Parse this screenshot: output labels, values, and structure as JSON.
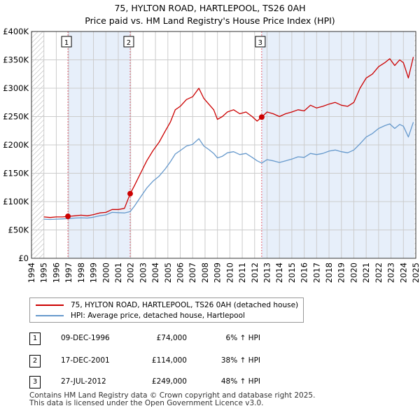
{
  "header": {
    "title_line1": "75, HYLTON ROAD, HARTLEPOOL, TS26 0AH",
    "title_line2": "Price paid vs. HM Land Registry's House Price Index (HPI)"
  },
  "chart_data": {
    "type": "line",
    "y_ticks": [
      {
        "value": 0,
        "label": "£0"
      },
      {
        "value": 50000,
        "label": "£50K"
      },
      {
        "value": 100000,
        "label": "£100K"
      },
      {
        "value": 150000,
        "label": "£150K"
      },
      {
        "value": 200000,
        "label": "£200K"
      },
      {
        "value": 250000,
        "label": "£250K"
      },
      {
        "value": 300000,
        "label": "£300K"
      },
      {
        "value": 350000,
        "label": "£350K"
      },
      {
        "value": 400000,
        "label": "£400K"
      }
    ],
    "ylim": [
      0,
      400000
    ],
    "xlim": [
      1995,
      2025
    ],
    "x_ticks": [
      "1994",
      "1995",
      "1996",
      "1997",
      "1998",
      "1999",
      "2000",
      "2001",
      "2002",
      "2003",
      "2004",
      "2005",
      "2006",
      "2007",
      "2008",
      "2009",
      "2010",
      "2011",
      "2012",
      "2013",
      "2014",
      "2015",
      "2016",
      "2017",
      "2018",
      "2019",
      "2020",
      "2021",
      "2022",
      "2023",
      "2024",
      "2025"
    ],
    "grid": true,
    "colors": {
      "property": "#cc0000",
      "hpi": "#6699cc",
      "shade": "#dde8f8",
      "hatch": "#b0b0b0",
      "grid": "#cccccc",
      "vline": "#e06070"
    },
    "series": [
      {
        "name": "75, HYLTON ROAD, HARTLEPOOL, TS26 0AH (detached house)",
        "x": [
          1995.0,
          1995.5,
          1996.0,
          1996.5,
          1996.94,
          1997.5,
          1998.0,
          1998.5,
          1999.0,
          1999.5,
          2000.0,
          2000.5,
          2001.0,
          2001.5,
          2001.96,
          2002.3,
          2002.8,
          2003.3,
          2003.8,
          2004.3,
          2004.8,
          2005.2,
          2005.6,
          2006.0,
          2006.5,
          2007.0,
          2007.5,
          2007.9,
          2008.3,
          2008.7,
          2009.0,
          2009.4,
          2009.8,
          2010.3,
          2010.8,
          2011.3,
          2011.8,
          2012.2,
          2012.57,
          2013.0,
          2013.5,
          2014.0,
          2014.5,
          2015.0,
          2015.5,
          2016.0,
          2016.5,
          2017.0,
          2017.5,
          2018.0,
          2018.5,
          2019.0,
          2019.5,
          2020.0,
          2020.5,
          2021.0,
          2021.5,
          2022.0,
          2022.5,
          2022.9,
          2023.3,
          2023.7,
          2024.0,
          2024.4,
          2024.8
        ],
        "values": [
          73000,
          72000,
          73000,
          73000,
          74000,
          75000,
          76000,
          75000,
          77000,
          80000,
          81000,
          86000,
          86000,
          88000,
          114000,
          128000,
          150000,
          172000,
          190000,
          205000,
          225000,
          240000,
          262000,
          268000,
          280000,
          285000,
          300000,
          282000,
          272000,
          262000,
          245000,
          250000,
          258000,
          262000,
          255000,
          258000,
          250000,
          242000,
          249000,
          258000,
          255000,
          250000,
          255000,
          258000,
          262000,
          260000,
          270000,
          265000,
          268000,
          272000,
          275000,
          270000,
          268000,
          275000,
          300000,
          318000,
          325000,
          338000,
          345000,
          352000,
          340000,
          350000,
          345000,
          318000,
          355000
        ]
      },
      {
        "name": "HPI: Average price, detached house, Hartlepool",
        "x": [
          1995.0,
          1995.5,
          1996.0,
          1996.5,
          1996.94,
          1997.5,
          1998.0,
          1998.5,
          1999.0,
          1999.5,
          2000.0,
          2000.5,
          2001.0,
          2001.5,
          2001.96,
          2002.3,
          2002.8,
          2003.3,
          2003.8,
          2004.3,
          2004.8,
          2005.2,
          2005.6,
          2006.0,
          2006.5,
          2007.0,
          2007.5,
          2007.9,
          2008.3,
          2008.7,
          2009.0,
          2009.4,
          2009.8,
          2010.3,
          2010.8,
          2011.3,
          2011.8,
          2012.2,
          2012.57,
          2013.0,
          2013.5,
          2014.0,
          2014.5,
          2015.0,
          2015.5,
          2016.0,
          2016.5,
          2017.0,
          2017.5,
          2018.0,
          2018.5,
          2019.0,
          2019.5,
          2020.0,
          2020.5,
          2021.0,
          2021.5,
          2022.0,
          2022.5,
          2022.9,
          2023.3,
          2023.7,
          2024.0,
          2024.4,
          2024.8
        ],
        "values": [
          69000,
          68500,
          69000,
          69500,
          70000,
          71000,
          71500,
          71000,
          72500,
          75000,
          76500,
          81000,
          80500,
          80000,
          82500,
          92000,
          108000,
          124000,
          136000,
          145000,
          158000,
          170000,
          184000,
          190000,
          198000,
          201000,
          211000,
          198000,
          192000,
          185000,
          177000,
          180000,
          186000,
          188000,
          183000,
          185000,
          178000,
          172000,
          168000,
          174000,
          172000,
          169000,
          172000,
          175000,
          179000,
          178000,
          185000,
          183000,
          185000,
          189000,
          191000,
          188000,
          186000,
          191000,
          202000,
          214000,
          220000,
          229000,
          234000,
          237000,
          229000,
          236000,
          233000,
          214000,
          240000
        ]
      }
    ],
    "transactions": [
      {
        "num": "1",
        "x": 1996.94,
        "price_value": 74000
      },
      {
        "num": "2",
        "x": 2001.96,
        "price_value": 114000
      },
      {
        "num": "3",
        "x": 2012.57,
        "price_value": 249000
      }
    ]
  },
  "legend": {
    "property_label": "75, HYLTON ROAD, HARTLEPOOL, TS26 0AH (detached house)",
    "hpi_label": "HPI: Average price, detached house, Hartlepool"
  },
  "table": {
    "rows": [
      {
        "num": "1",
        "date": "09-DEC-1996",
        "price": "£74,000",
        "hpi": "6% ↑ HPI"
      },
      {
        "num": "2",
        "date": "17-DEC-2001",
        "price": "£114,000",
        "hpi": "38% ↑ HPI"
      },
      {
        "num": "3",
        "date": "27-JUL-2012",
        "price": "£249,000",
        "hpi": "48% ↑ HPI"
      }
    ]
  },
  "footer": {
    "line1": "Contains HM Land Registry data © Crown copyright and database right 2025.",
    "line2": "This data is licensed under the Open Government Licence v3.0."
  }
}
